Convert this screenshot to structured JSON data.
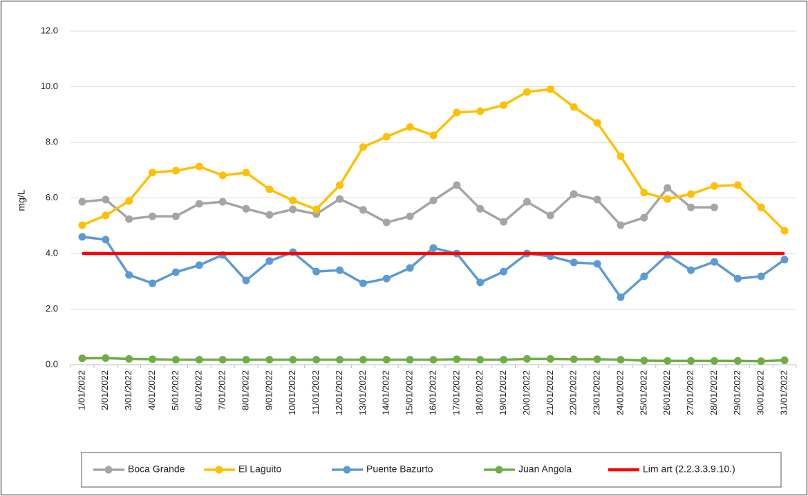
{
  "chart_data": {
    "type": "line",
    "y_label": "mg/L",
    "categories": [
      "1/01/2022",
      "2/01/2022",
      "3/01/2022",
      "4/01/2022",
      "5/01/2022",
      "6/01/2022",
      "7/01/2022",
      "8/01/2022",
      "9/01/2022",
      "10/01/2022",
      "11/01/2022",
      "12/01/2022",
      "13/01/2022",
      "14/01/2022",
      "15/01/2022",
      "16/01/2022",
      "17/01/2022",
      "18/01/2022",
      "19/01/2022",
      "20/01/2022",
      "21/01/2022",
      "22/01/2022",
      "23/01/2022",
      "24/01/2022",
      "25/01/2022",
      "26/01/2022",
      "27/01/2022",
      "28/01/2022",
      "29/01/2022",
      "30/01/2022",
      "31/01/2022"
    ],
    "series": [
      {
        "name": "Boca Grande",
        "color": "#a5a5a5",
        "markers": true,
        "values": [
          5.86,
          5.94,
          5.24,
          5.34,
          5.34,
          5.79,
          5.86,
          5.61,
          5.39,
          5.59,
          5.42,
          5.96,
          5.57,
          5.12,
          5.34,
          5.91,
          6.46,
          5.61,
          5.14,
          5.86,
          5.37,
          6.14,
          5.94,
          5.02,
          5.29,
          6.36,
          5.66,
          5.66,
          null,
          null,
          null
        ]
      },
      {
        "name": "El Laguito",
        "color": "#ffc000",
        "markers": true,
        "values": [
          5.02,
          5.37,
          5.89,
          6.91,
          6.98,
          7.13,
          6.81,
          6.91,
          6.31,
          5.91,
          5.59,
          6.46,
          7.83,
          8.2,
          8.55,
          8.25,
          9.07,
          9.12,
          9.34,
          9.81,
          9.91,
          9.27,
          8.7,
          7.5,
          6.19,
          5.96,
          6.14,
          6.43,
          6.46,
          5.66,
          4.82
        ]
      },
      {
        "name": "Puente Bazurto",
        "color": "#5b9bd5",
        "markers": true,
        "values": [
          4.6,
          4.5,
          3.23,
          2.93,
          3.33,
          3.58,
          3.95,
          3.03,
          3.73,
          4.05,
          3.35,
          3.4,
          2.93,
          3.1,
          3.48,
          4.2,
          4.0,
          2.96,
          3.35,
          4.0,
          3.9,
          3.68,
          3.63,
          2.43,
          3.18,
          3.95,
          3.4,
          3.7,
          3.1,
          3.18,
          3.78
        ]
      },
      {
        "name": "Juan Angola",
        "color": "#70ad47",
        "markers": true,
        "values": [
          0.23,
          0.24,
          0.21,
          0.2,
          0.18,
          0.18,
          0.18,
          0.18,
          0.18,
          0.18,
          0.18,
          0.18,
          0.18,
          0.18,
          0.18,
          0.18,
          0.2,
          0.18,
          0.18,
          0.21,
          0.21,
          0.2,
          0.2,
          0.18,
          0.15,
          0.14,
          0.14,
          0.14,
          0.14,
          0.13,
          0.16
        ]
      },
      {
        "name": "Lim art (2.2.3.3.9.10.)",
        "color": "#ff0000",
        "markers": false,
        "values": [
          4,
          4,
          4,
          4,
          4,
          4,
          4,
          4,
          4,
          4,
          4,
          4,
          4,
          4,
          4,
          4,
          4,
          4,
          4,
          4,
          4,
          4,
          4,
          4,
          4,
          4,
          4,
          4,
          4,
          4,
          4
        ]
      }
    ],
    "ylim": [
      0,
      12
    ],
    "yticks": [
      {
        "value": 0,
        "label": "0.0"
      },
      {
        "value": 2,
        "label": "2.0"
      },
      {
        "value": 4,
        "label": "4.0"
      },
      {
        "value": 6,
        "label": "6.0"
      },
      {
        "value": 8,
        "label": "8.0"
      },
      {
        "value": 10,
        "label": "10.0"
      },
      {
        "value": 12,
        "label": "12.0"
      }
    ],
    "grid": true,
    "legend": "bottom"
  }
}
